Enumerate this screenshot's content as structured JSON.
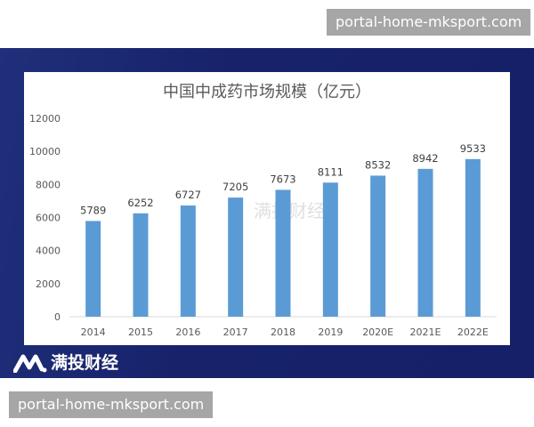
{
  "watermark_top": "portal-home-mksport.com",
  "watermark_bottom": "portal-home-mksport.com",
  "brand": {
    "name": "满投财经",
    "logo_icon": "mantou-logo-icon"
  },
  "center_watermark": "满投财经",
  "colors": {
    "bar": "#5b9bd5",
    "band": "#17226a"
  },
  "chart_data": {
    "type": "bar",
    "title": "中国中成药市场规模（亿元）",
    "categories": [
      "2014",
      "2015",
      "2016",
      "2017",
      "2018",
      "2019",
      "2020E",
      "2021E",
      "2022E"
    ],
    "values": [
      5789,
      6252,
      6727,
      7205,
      7673,
      8111,
      8532,
      8942,
      9533
    ],
    "ylim": [
      0,
      12000
    ],
    "yticks": [
      "0",
      "2000",
      "4000",
      "6000",
      "8000",
      "10000",
      "12000"
    ],
    "grid": false,
    "legend": "none",
    "data_labels": true
  }
}
